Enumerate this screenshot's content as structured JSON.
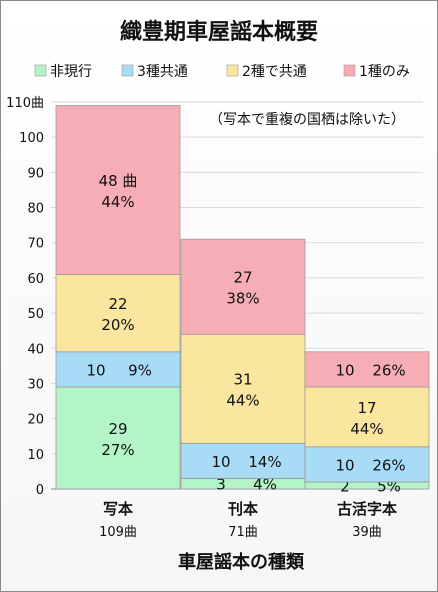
{
  "chart_data": {
    "type": "bar",
    "stacked": true,
    "title": "織豊期車屋謡本概要",
    "xlabel": "車屋謡本の種類",
    "ylabel": "",
    "ylim": [
      0,
      110
    ],
    "yticks": [
      0,
      10,
      20,
      30,
      40,
      50,
      60,
      70,
      80,
      90,
      100,
      110
    ],
    "ytick_labels": [
      "0",
      "10",
      "20",
      "30",
      "40",
      "50",
      "60",
      "70",
      "80",
      "90",
      "100",
      "110曲"
    ],
    "categories": [
      "写本",
      "刊本",
      "古活字本"
    ],
    "category_totals": [
      "109曲",
      "71曲",
      "39曲"
    ],
    "note": "（写本で重複の国栖は除いた）",
    "legend_position": "top",
    "grid": true,
    "series": [
      {
        "name": "非現行",
        "color": "#b3f5c6",
        "values": [
          29,
          3,
          2
        ],
        "value_labels": [
          "29",
          "3",
          "2"
        ],
        "percent_labels": [
          "27%",
          "4%",
          "5%"
        ]
      },
      {
        "name": "3種共通",
        "color": "#a8dcf6",
        "values": [
          10,
          10,
          10
        ],
        "value_labels": [
          "10",
          "10",
          "10"
        ],
        "percent_labels": [
          "9%",
          "14%",
          "26%"
        ]
      },
      {
        "name": "2種で共通",
        "color": "#fbe6a0",
        "values": [
          22,
          31,
          17
        ],
        "value_labels": [
          "22",
          "31",
          "17"
        ],
        "percent_labels": [
          "20%",
          "44%",
          "44%"
        ]
      },
      {
        "name": "1種のみ",
        "color": "#f7adb5",
        "values": [
          48,
          27,
          10
        ],
        "value_labels": [
          "48 曲",
          "27",
          "10"
        ],
        "percent_labels": [
          "44%",
          "38%",
          "26%"
        ]
      }
    ]
  }
}
